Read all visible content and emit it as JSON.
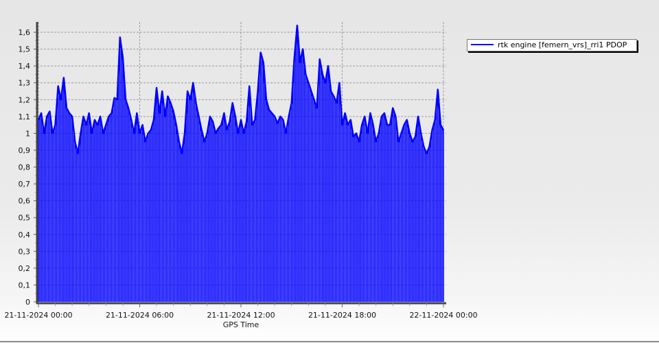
{
  "chart_data": {
    "type": "line",
    "title": "",
    "xlabel": "GPS Time",
    "ylabel": "",
    "ylim": [
      0,
      1.65
    ],
    "yticks": [
      "0",
      "0,1",
      "0,2",
      "0,3",
      "0,4",
      "0,5",
      "0,6",
      "0,7",
      "0,8",
      "0,9",
      "1",
      "1,1",
      "1,2",
      "1,3",
      "1,4",
      "1,5",
      "1,6"
    ],
    "xticks": [
      "21-11-2024 00:00",
      "21-11-2024 06:00",
      "21-11-2024 12:00",
      "21-11-2024 18:00",
      "22-11-2024 00:00"
    ],
    "xlim": [
      "21-11-2024 00:00",
      "22-11-2024 00:00"
    ],
    "grid": true,
    "legend_position": "right",
    "fill": "drop-lines to zero",
    "series": [
      {
        "name": "rtk engine [femern_vrs]_rri1 PDOP",
        "color": "#0000ff",
        "x_start": "21-11-2024 00:00",
        "x_step_minutes": 10,
        "values": [
          1.08,
          1.12,
          1.0,
          1.1,
          1.13,
          1.0,
          1.05,
          1.28,
          1.2,
          1.33,
          1.15,
          1.12,
          1.1,
          0.95,
          0.88,
          1.0,
          1.1,
          1.05,
          1.12,
          1.0,
          1.08,
          1.05,
          1.1,
          1.0,
          1.05,
          1.1,
          1.12,
          1.21,
          1.2,
          1.57,
          1.45,
          1.2,
          1.15,
          1.08,
          1.0,
          1.12,
          1.0,
          1.05,
          0.95,
          1.0,
          1.02,
          1.08,
          1.27,
          1.12,
          1.25,
          1.1,
          1.22,
          1.18,
          1.13,
          1.05,
          0.95,
          0.88,
          1.0,
          1.25,
          1.2,
          1.3,
          1.18,
          1.1,
          1.02,
          0.95,
          1.0,
          1.1,
          1.07,
          1.0,
          1.03,
          1.05,
          1.12,
          1.02,
          1.07,
          1.18,
          1.1,
          1.0,
          1.08,
          1.0,
          1.07,
          1.28,
          1.05,
          1.08,
          1.25,
          1.48,
          1.42,
          1.2,
          1.14,
          1.12,
          1.1,
          1.06,
          1.1,
          1.08,
          1.0,
          1.1,
          1.18,
          1.45,
          1.64,
          1.42,
          1.5,
          1.35,
          1.3,
          1.25,
          1.2,
          1.15,
          1.44,
          1.35,
          1.3,
          1.4,
          1.25,
          1.22,
          1.18,
          1.3,
          1.05,
          1.12,
          1.05,
          1.08,
          0.98,
          1.0,
          0.95,
          1.05,
          1.1,
          1.0,
          1.12,
          1.05,
          0.95,
          1.0,
          1.1,
          1.12,
          1.05,
          1.05,
          1.15,
          1.1,
          0.95,
          1.0,
          1.05,
          1.08,
          1.0,
          0.95,
          0.98,
          1.1,
          1.0,
          0.92,
          0.88,
          0.92,
          1.02,
          1.08,
          1.26,
          1.05,
          1.02
        ]
      }
    ]
  }
}
